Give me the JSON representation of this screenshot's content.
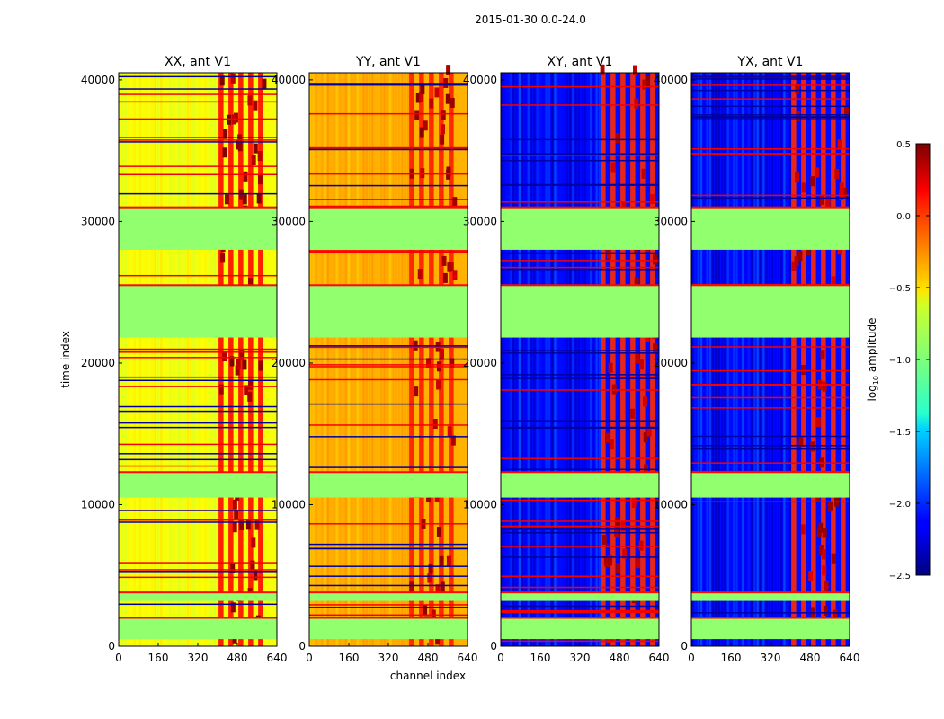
{
  "figure": {
    "suptitle": "2015-01-30 0.0-24.0",
    "xlabel": "channel index",
    "ylabel": "time index"
  },
  "colorbar": {
    "label_prefix": "log",
    "label_sub": "10",
    "label_suffix": " amplitude",
    "ticks": [
      "0.5",
      "0.0",
      "−0.5",
      "−1.0",
      "−1.5",
      "−2.0",
      "−2.5"
    ],
    "tick_values": [
      0.5,
      0.0,
      -0.5,
      -1.0,
      -1.5,
      -2.0,
      -2.5
    ],
    "vmin": -2.5,
    "vmax": 0.5,
    "colormap": "jet"
  },
  "chart_data": [
    {
      "type": "heatmap",
      "title": "XX, ant V1",
      "xlim": [
        0,
        640
      ],
      "ylim": [
        0,
        40500
      ],
      "xticks": [
        "0",
        "160",
        "320",
        "480",
        "640"
      ],
      "yticks": [
        "0",
        "10000",
        "20000",
        "30000",
        "40000"
      ],
      "background_level": -0.65,
      "hot_channel_range": [
        400,
        600
      ],
      "hot_level": 0.1
    },
    {
      "type": "heatmap",
      "title": "YY, ant V1",
      "xlim": [
        0,
        640
      ],
      "ylim": [
        0,
        40500
      ],
      "xticks": [
        "0",
        "160",
        "320",
        "480",
        "640"
      ],
      "yticks": [
        "0",
        "10000",
        "20000",
        "30000",
        "40000"
      ],
      "background_level": -0.4,
      "hot_channel_range": [
        400,
        600
      ],
      "hot_level": 0.05
    },
    {
      "type": "heatmap",
      "title": "XY, ant V1",
      "xlim": [
        0,
        640
      ],
      "ylim": [
        0,
        40500
      ],
      "xticks": [
        "0",
        "160",
        "320",
        "480",
        "640"
      ],
      "yticks": [
        "0",
        "10000",
        "20000",
        "30000",
        "40000"
      ],
      "background_level": -2.1,
      "hot_channel_range": [
        400,
        640
      ],
      "hot_level": 0.0
    },
    {
      "type": "heatmap",
      "title": "YX, ant V1",
      "xlim": [
        0,
        640
      ],
      "ylim": [
        0,
        40500
      ],
      "xticks": [
        "0",
        "160",
        "320",
        "480",
        "640"
      ],
      "yticks": [
        "0",
        "10000",
        "20000",
        "30000",
        "40000"
      ],
      "background_level": -2.1,
      "hot_channel_range": [
        400,
        640
      ],
      "hot_level": 0.0
    }
  ],
  "flagged_time_ranges": [
    [
      500,
      2000
    ],
    [
      3200,
      3800
    ],
    [
      10500,
      12300
    ],
    [
      21800,
      25500
    ],
    [
      28000,
      31000
    ]
  ],
  "flag_level": -0.95
}
